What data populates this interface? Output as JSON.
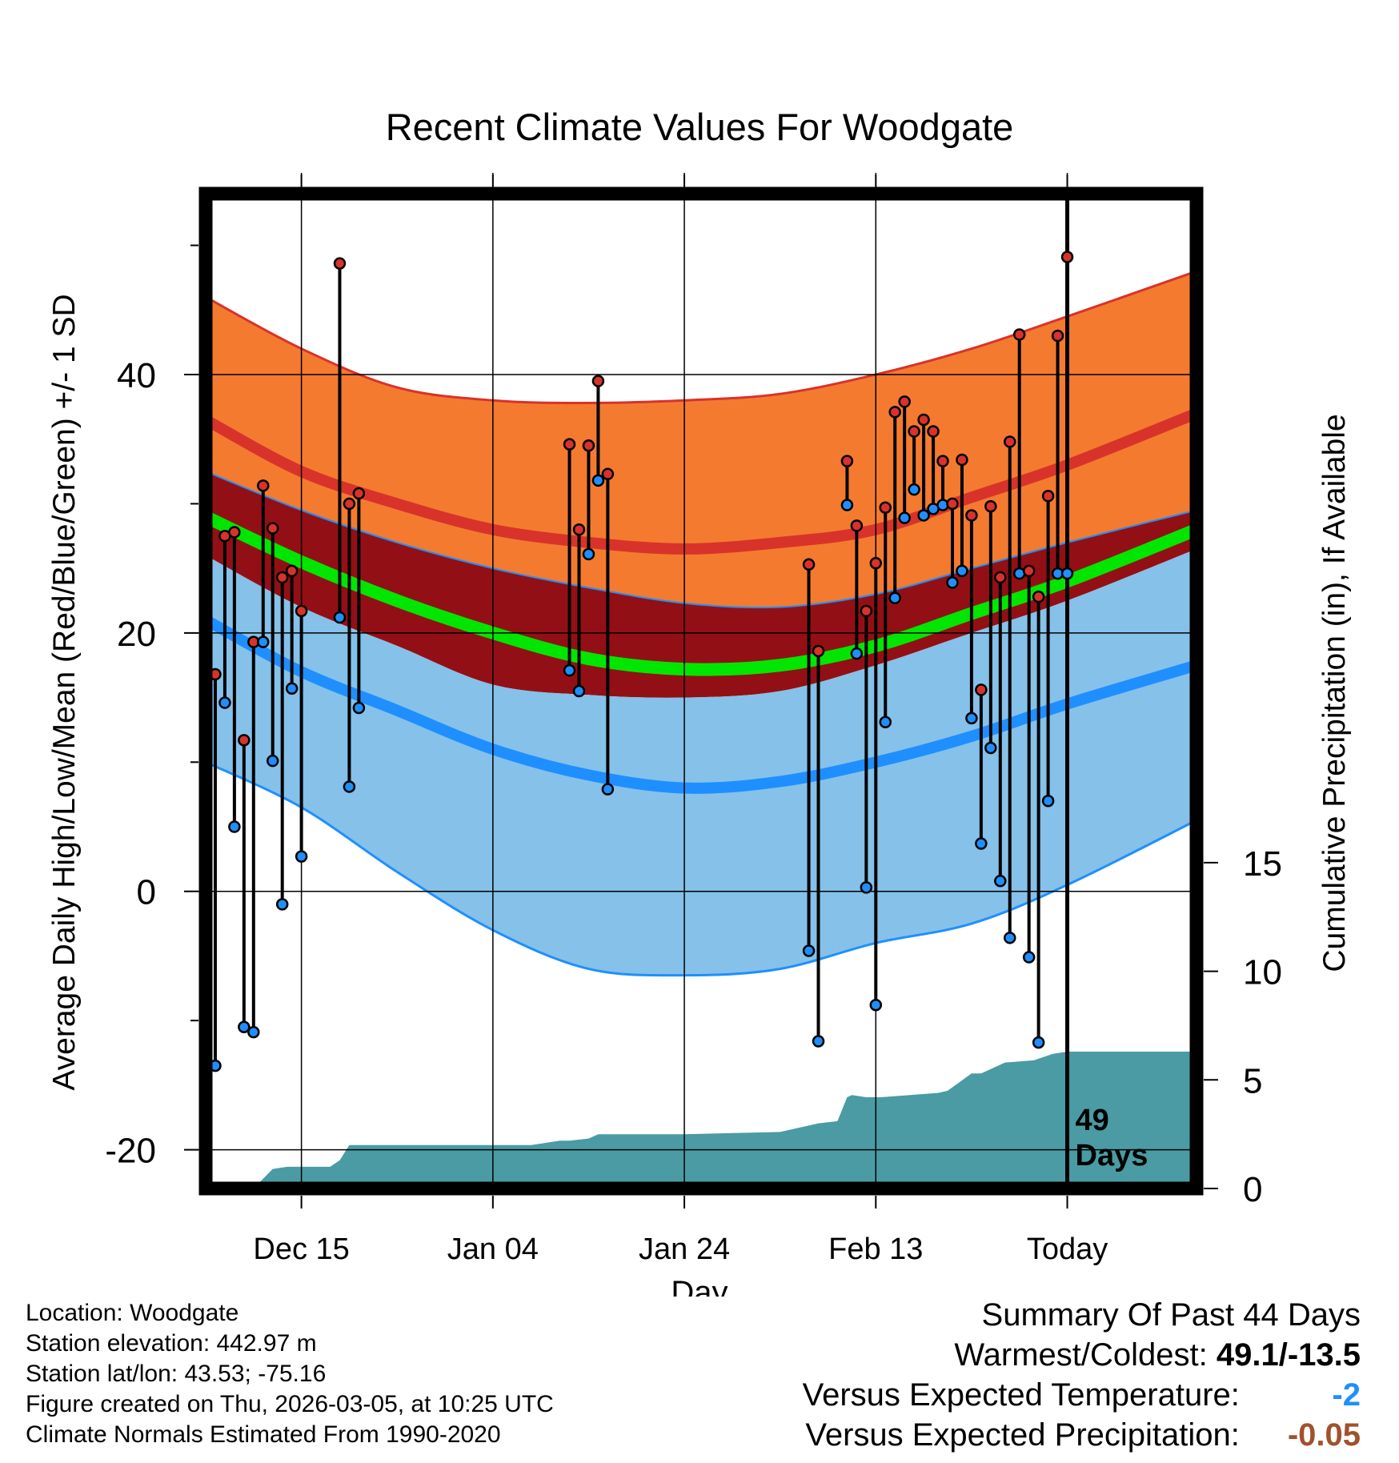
{
  "colors": {
    "high_band": "#f47a30",
    "high_edge": "#d8332a",
    "normal_high": "#d8332a",
    "mean_band": "#921015",
    "mean_line": "#00e600",
    "low_band": "#85c1e9",
    "low_edge": "#1f8fff",
    "normal_low": "#1f8fff",
    "precip": "#4a9ba4",
    "high_dot": "#d8332a",
    "low_dot": "#1f8fff",
    "colder": "#1f8fff",
    "drier": "#a0522d"
  },
  "chart_data": {
    "type": "line",
    "title": "Recent Climate Values For Woodgate",
    "xlabel": "Day",
    "ylabel": "Average Daily High/Low/Mean (Red/Blue/Green) +/- 1 SD",
    "y2label": "Cumulative Precipitation (in), If Available",
    "xlim": [
      -11.5,
      9.2
    ],
    "ylim": [
      -23,
      54
    ],
    "y2lim": [
      0,
      45.8
    ],
    "x_ticks": [
      {
        "day": -9.5,
        "label": "Dec 15"
      },
      {
        "day": -5.5,
        "label": "Jan 04"
      },
      {
        "day": -1.5,
        "label": "Jan 24"
      },
      {
        "day": 2.5,
        "label": "Feb 13"
      },
      {
        "day": 6.5,
        "label": "Today"
      }
    ],
    "y_ticks": [
      -20,
      0,
      20,
      40
    ],
    "y_minor": [
      -10,
      10,
      30,
      50
    ],
    "y2_ticks": [
      0,
      5,
      10,
      15
    ],
    "today_day": 6.5,
    "days_label": [
      "49",
      "Days"
    ],
    "normal_days": [
      -11.5,
      -9.5,
      -7.5,
      -5.5,
      -3.5,
      -1.5,
      0.5,
      2.5,
      4.5,
      6.5,
      9.2
    ],
    "normal_high_upper": [
      46,
      42,
      39,
      38,
      37.8,
      38,
      38.5,
      40,
      42,
      44.5,
      48
    ],
    "normal_high": [
      36.5,
      32.5,
      30,
      28,
      27,
      26.5,
      27,
      28,
      30.5,
      33,
      37
    ],
    "normal_mean_upper": [
      32.5,
      29.5,
      27,
      25,
      23.5,
      22.3,
      22,
      23,
      25,
      27,
      29.5
    ],
    "normal_mean": [
      29,
      25.5,
      22.5,
      20,
      18,
      17.2,
      17.5,
      19,
      21.5,
      24,
      28
    ],
    "normal_mean_lower": [
      26,
      22,
      19,
      16,
      15.2,
      15,
      15.5,
      17.5,
      20,
      22.5,
      26.5
    ],
    "normal_low": [
      21,
      17,
      14,
      11,
      9,
      8,
      8.5,
      10,
      12,
      14.5,
      17.5
    ],
    "normal_low_lower": [
      10,
      6.5,
      1.5,
      -3,
      -6,
      -6.5,
      -6,
      -4,
      -2.5,
      0.5,
      5.5
    ],
    "obs_days": [
      -11.3,
      -11.1,
      -10.9,
      -10.7,
      -10.5,
      -10.3,
      -10.1,
      -9.9,
      -9.7,
      -9.5,
      -8.7,
      -8.5,
      -8.3,
      -3.9,
      -3.7,
      -3.5,
      -3.3,
      -3.1,
      1.1,
      1.3,
      1.9,
      2.1,
      2.3,
      2.5,
      2.7,
      2.9,
      3.1,
      3.3,
      3.5,
      3.7,
      3.9,
      4.1,
      4.3,
      4.5,
      4.7,
      4.9,
      5.1,
      5.3,
      5.5,
      5.7,
      5.9,
      6.1,
      6.3,
      6.5
    ],
    "obs_high": [
      16.8,
      27.5,
      27.8,
      11.7,
      19.3,
      31.4,
      28.1,
      24.3,
      24.8,
      21.7,
      48.6,
      30.0,
      30.8,
      34.6,
      28.0,
      34.5,
      39.5,
      32.3,
      25.3,
      18.6,
      33.3,
      28.3,
      21.7,
      25.4,
      29.7,
      37.1,
      37.9,
      35.6,
      36.5,
      35.6,
      33.3,
      30.0,
      33.4,
      29.1,
      15.6,
      29.8,
      24.3,
      34.8,
      43.1,
      24.8,
      22.8,
      30.6,
      43.0,
      49.1
    ],
    "obs_low": [
      -13.5,
      14.6,
      5.0,
      -10.5,
      -10.9,
      19.3,
      10.1,
      -1.0,
      15.7,
      2.7,
      21.2,
      8.1,
      14.2,
      17.1,
      15.5,
      26.1,
      31.8,
      7.9,
      -4.6,
      -11.6,
      29.9,
      18.4,
      0.3,
      -8.8,
      13.1,
      22.7,
      28.9,
      31.1,
      29.1,
      29.6,
      29.9,
      23.9,
      24.8,
      13.4,
      3.7,
      11.1,
      0.8,
      -3.6,
      24.6,
      -5.1,
      -11.7,
      7.0,
      24.6,
      24.6
    ],
    "precip_days": [
      -11.5,
      -10.5,
      -10.1,
      -9.8,
      -9.3,
      -8.9,
      -8.7,
      -8.5,
      -6.5,
      -4.7,
      -4.1,
      -3.9,
      -3.5,
      -3.3,
      -1.5,
      0.5,
      1.3,
      1.7,
      1.9,
      2.0,
      2.3,
      2.6,
      3.8,
      4.0,
      4.5,
      4.7,
      5.2,
      5.8,
      6.2,
      6.5,
      9.2
    ],
    "precip_cum": [
      0,
      0,
      0.9,
      1.0,
      1.0,
      1.0,
      1.3,
      2.0,
      2.0,
      2.0,
      2.2,
      2.2,
      2.3,
      2.5,
      2.5,
      2.6,
      3.0,
      3.1,
      4.2,
      4.3,
      4.2,
      4.2,
      4.4,
      4.5,
      5.3,
      5.3,
      5.8,
      5.9,
      6.2,
      6.3,
      6.3
    ]
  },
  "info": {
    "location": "Location: Woodgate",
    "elevation": "Station elevation: 442.97 m",
    "latlon": "Station lat/lon: 43.53; -75.16",
    "created": "Figure created on Thu, 2026-03-05, at 10:25 UTC",
    "normals": "Climate Normals Estimated From 1990-2020"
  },
  "summary": {
    "heading": "Summary Of Past 44 Days",
    "warmest_coldest_label": "Warmest/Coldest:",
    "warmest_coldest_value": "49.1/-13.5",
    "temp_label": "Versus Expected Temperature:",
    "temp_value": "-2",
    "precip_label": "Versus Expected Precipitation:",
    "precip_value": "-0.05"
  }
}
